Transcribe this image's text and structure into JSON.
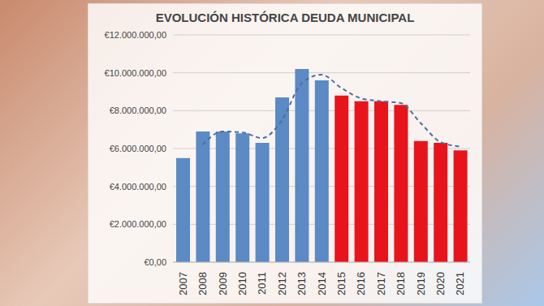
{
  "chart_data": {
    "type": "bar",
    "title": "EVOLUCIÓN HISTÓRICA DEUDA MUNICIPAL",
    "categories": [
      "2007",
      "2008",
      "2009",
      "2010",
      "2011",
      "2012",
      "2013",
      "2014",
      "2015",
      "2016",
      "2017",
      "2018",
      "2019",
      "2020",
      "2021"
    ],
    "series": [
      {
        "type": "bar",
        "values": [
          5500000,
          6900000,
          6900000,
          6800000,
          6300000,
          8700000,
          10200000,
          9600000,
          8800000,
          8500000,
          8500000,
          8300000,
          6400000,
          6300000,
          5900000
        ],
        "colors": [
          "#5b8ac5",
          "#5b8ac5",
          "#5b8ac5",
          "#5b8ac5",
          "#5b8ac5",
          "#5b8ac5",
          "#5b8ac5",
          "#5b8ac5",
          "#e8141c",
          "#e8141c",
          "#e8141c",
          "#e8141c",
          "#e8141c",
          "#e8141c",
          "#e8141c"
        ]
      },
      {
        "type": "line",
        "values": [
          null,
          6200000,
          6900000,
          6850000,
          6550000,
          7500000,
          9450000,
          9900000,
          9200000,
          8650000,
          8500000,
          8400000,
          7350000,
          6350000,
          6100000
        ],
        "color": "#4a6fa5",
        "line_style": "dashed"
      }
    ],
    "ylim": [
      0,
      12000000
    ],
    "yticks": [
      {
        "value": 0,
        "label": "€0,00"
      },
      {
        "value": 2000000,
        "label": "€2.000.000,00"
      },
      {
        "value": 4000000,
        "label": "€4.000.000,00"
      },
      {
        "value": 6000000,
        "label": "€6.000.000,00"
      },
      {
        "value": 8000000,
        "label": "€8.000.000,00"
      },
      {
        "value": 10000000,
        "label": "€10.000.000,00"
      },
      {
        "value": 12000000,
        "label": "€12.000.000,00"
      }
    ],
    "grid": true
  }
}
